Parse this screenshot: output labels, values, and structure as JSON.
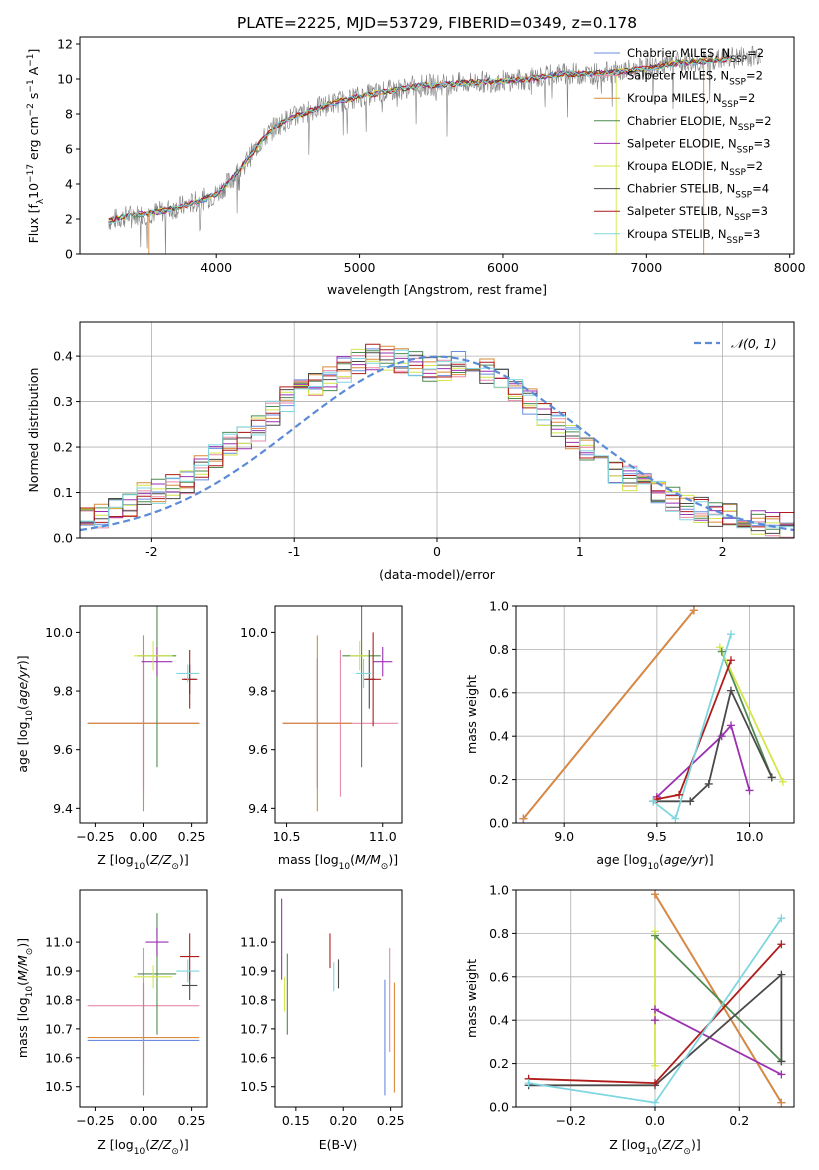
{
  "title": "PLATE=2225, MJD=53729, FIBERID=0349, z=0.178",
  "colors": {
    "chabrier_miles": "#6a8be0",
    "salpeter_miles": "#e88aa8",
    "kroupa_miles": "#d98a3a",
    "chabrier_elodie": "#4f8a4f",
    "salpeter_elodie": "#9b30b0",
    "kroupa_elodie": "#d4e64a",
    "chabrier_stelib": "#4a4a4a",
    "salpeter_stelib": "#b01c1c",
    "kroupa_stelib": "#7fd6e0",
    "data": "#808080",
    "normal": "#5b8ad8"
  },
  "chart_data": [
    {
      "id": "spectrum",
      "type": "line",
      "xlabel": "wavelength [Angstrom, rest frame]",
      "ylabel_main": "Flux [f",
      "ylabel_sub": "λ",
      "ylabel_rest": "10",
      "ylabel_exp": "−17",
      "ylabel_unit": " erg cm",
      "ylabel_exp2": "−2",
      "ylabel_s": " s",
      "ylabel_exp3": "−1",
      "ylabel_a": " A",
      "ylabel_exp4": "−1",
      "ylabel_end": "]",
      "xlim": [
        3050,
        8030
      ],
      "ylim": [
        0,
        12.4
      ],
      "xticks": [
        4000,
        5000,
        6000,
        7000,
        8000
      ],
      "yticks": [
        0,
        2,
        4,
        6,
        8,
        10,
        12
      ],
      "data_x": [
        3250,
        3400,
        3600,
        3800,
        4000,
        4100,
        4200,
        4300,
        4400,
        4500,
        4600,
        4700,
        4800,
        4900,
        5000,
        5200,
        5400,
        5600,
        5800,
        6000,
        6200,
        6400,
        6600,
        6800,
        7000,
        7200,
        7400,
        7600,
        7800
      ],
      "data_y": [
        1.9,
        2.2,
        2.4,
        2.8,
        3.4,
        4.2,
        5.2,
        6.3,
        7.2,
        7.7,
        8.0,
        8.3,
        8.6,
        8.8,
        9.0,
        9.3,
        9.6,
        9.7,
        9.8,
        9.9,
        10.0,
        10.3,
        10.3,
        10.4,
        10.6,
        10.9,
        11.0,
        11.2,
        11.4
      ],
      "legend": [
        {
          "name": "Chabrier MILES, N",
          "sub": "SSP",
          "val": "=2",
          "color": "#6a8be0"
        },
        {
          "name": "Salpeter MILES, N",
          "sub": "SSP",
          "val": "=2",
          "color": "#e88aa8"
        },
        {
          "name": "Kroupa MILES, N",
          "sub": "SSP",
          "val": "=2",
          "color": "#d98a3a"
        },
        {
          "name": "Chabrier ELODIE, N",
          "sub": "SSP",
          "val": "=2",
          "color": "#4f8a4f"
        },
        {
          "name": "Salpeter ELODIE, N",
          "sub": "SSP",
          "val": "=3",
          "color": "#9b30b0"
        },
        {
          "name": "Kroupa ELODIE, N",
          "sub": "SSP",
          "val": "=2",
          "color": "#d4e64a"
        },
        {
          "name": "Chabrier STELIB, N",
          "sub": "SSP",
          "val": "=4",
          "color": "#4a4a4a"
        },
        {
          "name": "Salpeter STELIB, N",
          "sub": "SSP",
          "val": "=3",
          "color": "#b01c1c"
        },
        {
          "name": "Kroupa STELIB, N",
          "sub": "SSP",
          "val": "=3",
          "color": "#7fd6e0"
        }
      ]
    },
    {
      "id": "residuals",
      "type": "line",
      "xlabel": "(data-model)/error",
      "ylabel": "Normed distribution",
      "xlim": [
        -2.5,
        2.5
      ],
      "ylim": [
        0,
        0.475
      ],
      "xticks": [
        -2,
        -1,
        0,
        1,
        2
      ],
      "yticks": [
        0.0,
        0.1,
        0.2,
        0.3,
        0.4
      ],
      "legend": "𝒩(0, 1)",
      "grid": true,
      "hist_profile_x": [
        -2.5,
        -2.25,
        -2.0,
        -1.75,
        -1.5,
        -1.25,
        -1.0,
        -0.75,
        -0.5,
        -0.25,
        0.0,
        0.25,
        0.5,
        0.75,
        1.0,
        1.25,
        1.5,
        1.75,
        2.0,
        2.25,
        2.5
      ],
      "hist_profile_y": [
        0.04,
        0.06,
        0.1,
        0.12,
        0.2,
        0.24,
        0.32,
        0.35,
        0.4,
        0.39,
        0.37,
        0.39,
        0.34,
        0.27,
        0.21,
        0.15,
        0.11,
        0.07,
        0.05,
        0.035,
        0.025
      ]
    },
    {
      "id": "age_vs_Z",
      "type": "scatter",
      "xlabel": "Z [log",
      "xlabel_sub": "10",
      "xlabel_rest": "(Z/Z",
      "xlabel_sun": "⊙",
      "xlabel_end": ")]",
      "ylabel": "age  [log",
      "ylabel_sub": "10",
      "ylabel_rest": "(age/yr)]",
      "xlim": [
        -0.33,
        0.33
      ],
      "ylim": [
        9.35,
        10.09
      ],
      "xticks": [
        -0.25,
        0.0,
        0.25
      ],
      "xticklabels": [
        "−0.25",
        "0.00",
        "0.25"
      ],
      "yticks": [
        9.4,
        9.6,
        9.8,
        10.0
      ],
      "yticklabels": [
        "9.4",
        "9.6",
        "9.8",
        "10.0"
      ],
      "points": [
        {
          "color": "#6a8be0",
          "x": 0.0,
          "y": 9.69,
          "xe": 0.29,
          "ye": 0.22
        },
        {
          "color": "#e88aa8",
          "x": 0.0,
          "y": 9.69,
          "xe": 0.29,
          "ye": 0.25
        },
        {
          "color": "#d98a3a",
          "x": 0.0,
          "y": 9.69,
          "xe": 0.29,
          "ye": 0.3
        },
        {
          "color": "#4f8a4f",
          "x": 0.07,
          "y": 9.92,
          "xe": 0.1,
          "ye": 0.38
        },
        {
          "color": "#9b30b0",
          "x": 0.07,
          "y": 9.9,
          "xe": 0.08,
          "ye": 0.05
        },
        {
          "color": "#d4e64a",
          "x": 0.05,
          "y": 9.92,
          "xe": 0.1,
          "ye": 0.05
        },
        {
          "color": "#4a4a4a",
          "x": 0.24,
          "y": 9.84,
          "xe": 0.03,
          "ye": 0.05
        },
        {
          "color": "#b01c1c",
          "x": 0.24,
          "y": 9.84,
          "xe": 0.04,
          "ye": 0.1
        },
        {
          "color": "#7fd6e0",
          "x": 0.23,
          "y": 9.86,
          "xe": 0.06,
          "ye": 0.03
        }
      ]
    },
    {
      "id": "age_vs_mass",
      "type": "scatter",
      "xlabel": "mass [log",
      "xlabel_sub": "10",
      "xlabel_rest": "(M/M",
      "xlabel_sun": "⊙",
      "xlabel_end": ")]",
      "xlim": [
        10.44,
        11.1
      ],
      "ylim": [
        9.35,
        10.09
      ],
      "xticks": [
        10.5,
        11.0
      ],
      "xticklabels": [
        "10.5",
        "11.0"
      ],
      "yticks": [
        9.4,
        9.6,
        9.8,
        10.0
      ],
      "yticklabels": [
        "9.4",
        "9.6",
        "9.8",
        "10.0"
      ],
      "points": [
        {
          "color": "#6a8be0",
          "x": 10.66,
          "y": 9.69,
          "xe": 0.18,
          "ye": 0.22
        },
        {
          "color": "#e88aa8",
          "x": 10.78,
          "y": 9.69,
          "xe": 0.3,
          "ye": 0.25
        },
        {
          "color": "#d98a3a",
          "x": 10.66,
          "y": 9.69,
          "xe": 0.18,
          "ye": 0.3
        },
        {
          "color": "#4f8a4f",
          "x": 10.89,
          "y": 9.92,
          "xe": 0.1,
          "ye": 0.38
        },
        {
          "color": "#9b30b0",
          "x": 11.0,
          "y": 9.9,
          "xe": 0.05,
          "ye": 0.05
        },
        {
          "color": "#d4e64a",
          "x": 10.88,
          "y": 9.92,
          "xe": 0.05,
          "ye": 0.05
        },
        {
          "color": "#4a4a4a",
          "x": 10.93,
          "y": 9.84,
          "xe": 0.03,
          "ye": 0.1
        },
        {
          "color": "#b01c1c",
          "x": 10.95,
          "y": 9.84,
          "xe": 0.04,
          "ye": 0.16
        },
        {
          "color": "#7fd6e0",
          "x": 10.9,
          "y": 9.86,
          "xe": 0.04,
          "ye": 0.05
        }
      ]
    },
    {
      "id": "weight_vs_age",
      "type": "line",
      "xlabel": "age  [log",
      "xlabel_sub": "10",
      "xlabel_rest": "(age/yr)]",
      "ylabel": "mass weight",
      "xlim": [
        8.74,
        10.24
      ],
      "ylim": [
        0,
        1
      ],
      "xticks": [
        9.0,
        9.5,
        10.0
      ],
      "xticklabels": [
        "9.0",
        "9.5",
        "10.0"
      ],
      "yticks": [
        0.0,
        0.2,
        0.4,
        0.6,
        0.8,
        1.0
      ],
      "yticklabels": [
        "0.0",
        "0.2",
        "0.4",
        "0.6",
        "0.8",
        "1.0"
      ],
      "grid": true,
      "series": [
        {
          "color": "#6a8be0",
          "x": [
            8.78,
            9.7
          ],
          "y": [
            0.02,
            0.98
          ]
        },
        {
          "color": "#e88aa8",
          "x": [
            8.78,
            9.7
          ],
          "y": [
            0.02,
            0.98
          ]
        },
        {
          "color": "#d98a3a",
          "x": [
            8.78,
            9.7
          ],
          "y": [
            0.02,
            0.98
          ]
        },
        {
          "color": "#4f8a4f",
          "x": [
            10.12,
            9.85
          ],
          "y": [
            0.21,
            0.79
          ]
        },
        {
          "color": "#9b30b0",
          "x": [
            9.5,
            9.85,
            9.9,
            10.0
          ],
          "y": [
            0.12,
            0.4,
            0.45,
            0.15
          ]
        },
        {
          "color": "#d4e64a",
          "x": [
            9.84,
            10.18
          ],
          "y": [
            0.81,
            0.19
          ]
        },
        {
          "color": "#4a4a4a",
          "x": [
            9.48,
            9.68,
            9.78,
            9.9,
            10.12
          ],
          "y": [
            0.1,
            0.1,
            0.18,
            0.61,
            0.21
          ]
        },
        {
          "color": "#b01c1c",
          "x": [
            9.5,
            9.62,
            9.9
          ],
          "y": [
            0.11,
            0.13,
            0.75
          ]
        },
        {
          "color": "#7fd6e0",
          "x": [
            9.48,
            9.6,
            9.9
          ],
          "y": [
            0.1,
            0.02,
            0.87
          ]
        }
      ]
    },
    {
      "id": "mass_vs_Z",
      "type": "scatter",
      "xlabel": "Z [log",
      "xlabel_sub": "10",
      "xlabel_rest": "(Z/Z",
      "xlabel_sun": "⊙",
      "xlabel_end": ")]",
      "ylabel": "mass [log",
      "ylabel_sub": "10",
      "ylabel_rest": "(M/M",
      "ylabel_sun": "⊙",
      "ylabel_end": ")]",
      "xlim": [
        -0.33,
        0.33
      ],
      "ylim": [
        10.43,
        11.18
      ],
      "xticks": [
        -0.25,
        0.0,
        0.25
      ],
      "xticklabels": [
        "−0.25",
        "0.00",
        "0.25"
      ],
      "yticks": [
        10.5,
        10.6,
        10.7,
        10.8,
        10.9,
        11.0
      ],
      "yticklabels": [
        "10.5",
        "10.6",
        "10.7",
        "10.8",
        "10.9",
        "11.0"
      ],
      "points": [
        {
          "color": "#6a8be0",
          "x": 0.0,
          "y": 10.66,
          "xe": 0.29,
          "ye": 0.19
        },
        {
          "color": "#e88aa8",
          "x": 0.0,
          "y": 10.78,
          "xe": 0.29,
          "ye": 0.2
        },
        {
          "color": "#d98a3a",
          "x": 0.0,
          "y": 10.67,
          "xe": 0.29,
          "ye": 0.19
        },
        {
          "color": "#4f8a4f",
          "x": 0.07,
          "y": 10.89,
          "xe": 0.1,
          "ye": 0.21
        },
        {
          "color": "#9b30b0",
          "x": 0.07,
          "y": 11.0,
          "xe": 0.06,
          "ye": 0.05
        },
        {
          "color": "#d4e64a",
          "x": 0.05,
          "y": 10.88,
          "xe": 0.1,
          "ye": 0.04
        },
        {
          "color": "#4a4a4a",
          "x": 0.24,
          "y": 10.85,
          "xe": 0.04,
          "ye": 0.05
        },
        {
          "color": "#b01c1c",
          "x": 0.24,
          "y": 10.95,
          "xe": 0.05,
          "ye": 0.08
        },
        {
          "color": "#7fd6e0",
          "x": 0.23,
          "y": 10.9,
          "xe": 0.06,
          "ye": 0.04
        }
      ]
    },
    {
      "id": "mass_vs_ebv",
      "type": "scatter",
      "xlabel": "E(B-V)",
      "xlim": [
        0.128,
        0.262
      ],
      "ylim": [
        10.43,
        11.18
      ],
      "xticks": [
        0.15,
        0.2,
        0.25
      ],
      "xticklabels": [
        "0.15",
        "0.20",
        "0.25"
      ],
      "yticks": [
        10.5,
        10.6,
        10.7,
        10.8,
        10.9,
        11.0
      ],
      "yticklabels": [
        "10.5",
        "10.6",
        "10.7",
        "10.8",
        "10.9",
        "11.0"
      ],
      "points": [
        {
          "color": "#6a8be0",
          "x": 0.244,
          "y": 10.67,
          "xe": 0.0,
          "ye": 0.2
        },
        {
          "color": "#e88aa8",
          "x": 0.249,
          "y": 10.8,
          "xe": 0.0,
          "ye": 0.18
        },
        {
          "color": "#d98a3a",
          "x": 0.254,
          "y": 10.67,
          "xe": 0.0,
          "ye": 0.19
        },
        {
          "color": "#4f8a4f",
          "x": 0.141,
          "y": 10.82,
          "xe": 0.0,
          "ye": 0.14
        },
        {
          "color": "#9b30b0",
          "x": 0.135,
          "y": 11.01,
          "xe": 0.0,
          "ye": 0.14
        },
        {
          "color": "#d4e64a",
          "x": 0.138,
          "y": 10.82,
          "xe": 0.0,
          "ye": 0.06
        },
        {
          "color": "#4a4a4a",
          "x": 0.195,
          "y": 10.89,
          "xe": 0.0,
          "ye": 0.05
        },
        {
          "color": "#b01c1c",
          "x": 0.186,
          "y": 10.97,
          "xe": 0.0,
          "ye": 0.06
        },
        {
          "color": "#7fd6e0",
          "x": 0.19,
          "y": 10.88,
          "xe": 0.0,
          "ye": 0.05
        }
      ]
    },
    {
      "id": "weight_vs_Z",
      "type": "line",
      "xlabel": "Z [log",
      "xlabel_sub": "10",
      "xlabel_rest": "(Z/Z",
      "xlabel_sun": "⊙",
      "xlabel_end": ")]",
      "ylabel": "mass weight",
      "xlim": [
        -0.33,
        0.33
      ],
      "ylim": [
        0,
        1
      ],
      "xticks": [
        -0.2,
        0.0,
        0.2
      ],
      "xticklabels": [
        "−0.2",
        "0.0",
        "0.2"
      ],
      "yticks": [
        0.0,
        0.2,
        0.4,
        0.6,
        0.8,
        1.0
      ],
      "yticklabels": [
        "0.0",
        "0.2",
        "0.4",
        "0.6",
        "0.8",
        "1.0"
      ],
      "grid": true,
      "series": [
        {
          "color": "#6a8be0",
          "x": [
            0.0,
            0.3
          ],
          "y": [
            0.98,
            0.02
          ]
        },
        {
          "color": "#e88aa8",
          "x": [
            0.0,
            0.3
          ],
          "y": [
            0.98,
            0.02
          ]
        },
        {
          "color": "#d98a3a",
          "x": [
            0.0,
            0.3
          ],
          "y": [
            0.98,
            0.02
          ]
        },
        {
          "color": "#4f8a4f",
          "x": [
            0.0,
            0.3
          ],
          "y": [
            0.79,
            0.21
          ]
        },
        {
          "color": "#9b30b0",
          "x": [
            0.0,
            0.0,
            0.3
          ],
          "y": [
            0.4,
            0.45,
            0.15
          ]
        },
        {
          "color": "#d4e64a",
          "x": [
            0.0,
            0.0
          ],
          "y": [
            0.81,
            0.19
          ]
        },
        {
          "color": "#4a4a4a",
          "x": [
            -0.3,
            0.0,
            0.3,
            0.3
          ],
          "y": [
            0.1,
            0.1,
            0.61,
            0.21
          ]
        },
        {
          "color": "#b01c1c",
          "x": [
            -0.3,
            0.0,
            0.3
          ],
          "y": [
            0.13,
            0.11,
            0.75
          ]
        },
        {
          "color": "#7fd6e0",
          "x": [
            -0.3,
            0.0,
            0.3
          ],
          "y": [
            0.11,
            0.02,
            0.87
          ]
        }
      ]
    }
  ]
}
